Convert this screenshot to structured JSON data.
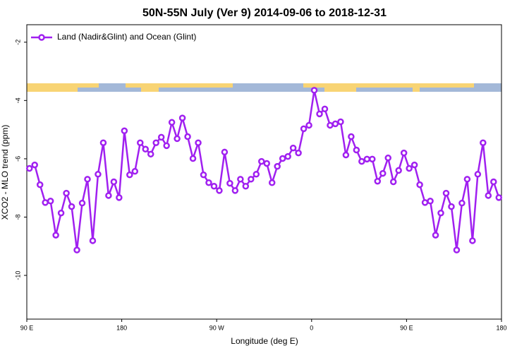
{
  "chart_data": {
    "type": "line",
    "title": "50N-55N July (Ver 9)   2014-09-06 to 2018-12-31",
    "x_label": "Longitude (deg E)",
    "y_label": "XCO2 - MLO trend (ppm)",
    "xlim": [
      90,
      540
    ],
    "xticks": [
      {
        "value": 90,
        "label": "90 E"
      },
      {
        "value": 180,
        "label": "180"
      },
      {
        "value": 270,
        "label": "90 W"
      },
      {
        "value": 360,
        "label": "0"
      },
      {
        "value": 450,
        "label": "90 E"
      },
      {
        "value": 540,
        "label": "180"
      }
    ],
    "ylim": [
      -11.5,
      -1.4
    ],
    "yticks": [
      -2,
      -4,
      -6,
      -8,
      -10
    ],
    "legend": "top-left",
    "x": [
      92.5,
      97.5,
      102.5,
      107.5,
      112.5,
      117.5,
      122.5,
      127.5,
      132.5,
      137.5,
      142.5,
      147.5,
      152.5,
      157.5,
      162.5,
      167.5,
      172.5,
      177.5,
      182.5,
      187.5,
      192.5,
      197.5,
      202.5,
      207.5,
      212.5,
      217.5,
      222.5,
      227.5,
      232.5,
      237.5,
      242.5,
      247.5,
      252.5,
      257.5,
      262.5,
      267.5,
      272.5,
      277.5,
      282.5,
      287.5,
      292.5,
      297.5,
      302.5,
      307.5,
      312.5,
      317.5,
      322.5,
      327.5,
      332.5,
      337.5,
      342.5,
      347.5,
      352.5,
      357.5,
      362.5,
      367.5,
      372.5,
      377.5,
      382.5,
      387.5,
      392.5,
      397.5,
      402.5,
      407.5,
      412.5,
      417.5,
      422.5,
      427.5,
      432.5,
      437.5,
      442.5,
      447.5,
      452.5,
      457.5,
      462.5,
      467.5,
      472.5,
      477.5,
      482.5,
      487.5,
      492.5,
      497.5,
      502.5,
      507.5,
      512.5,
      517.5,
      522.5,
      527.5,
      532.5,
      537.5
    ],
    "series": [
      {
        "name": "Land (Nadir&Glint) and Ocean (Glint)",
        "color": "#a020f0",
        "values": [
          -6.33,
          -6.21,
          -6.89,
          -7.5,
          -7.45,
          -8.62,
          -7.86,
          -7.18,
          -7.64,
          -9.13,
          -7.52,
          -6.7,
          -8.81,
          -6.53,
          -5.45,
          -7.26,
          -6.79,
          -7.33,
          -5.04,
          -6.55,
          -6.43,
          -5.45,
          -5.67,
          -5.84,
          -5.45,
          -5.26,
          -5.55,
          -4.75,
          -5.31,
          -4.6,
          -5.24,
          -5.99,
          -5.45,
          -6.55,
          -6.82,
          -6.94,
          -7.09,
          -5.77,
          -6.84,
          -7.09,
          -6.7,
          -6.94,
          -6.7,
          -6.53,
          -6.09,
          -6.16,
          -6.82,
          -6.26,
          -5.99,
          -5.92,
          -5.63,
          -5.8,
          -4.97,
          -4.85,
          -3.65,
          -4.46,
          -4.29,
          -4.85,
          -4.8,
          -4.73,
          -5.87,
          -5.24,
          -5.7,
          -6.09,
          -6.01,
          -6.01,
          -6.77,
          -6.5,
          -5.97,
          -6.79,
          -6.4,
          -5.8,
          -6.33,
          -6.21,
          -6.89,
          -7.5,
          -7.45,
          -8.62,
          -7.86,
          -7.18,
          -7.64,
          -9.13,
          -7.52,
          -6.7,
          -8.81,
          -6.53,
          -5.45,
          -7.26,
          -6.79,
          -7.33
        ]
      }
    ]
  }
}
